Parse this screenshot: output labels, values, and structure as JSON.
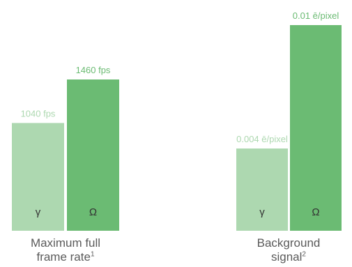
{
  "chart_data": [
    {
      "type": "bar",
      "title": "",
      "xlabel": "Maximum full frame rate",
      "xlabel_line1": "Maximum full",
      "xlabel_line2": "frame rate",
      "footnote": "1",
      "ylabel": "",
      "unit": "fps",
      "ylim": [
        0,
        1460
      ],
      "grid": false,
      "categories": [
        "γ",
        "Ω"
      ],
      "values": [
        1040,
        1460
      ],
      "value_labels": [
        "1040 fps",
        "1460 fps"
      ],
      "colors": [
        "#add8b0",
        "#6bbb73"
      ],
      "label_colors": [
        "#add8b0",
        "#6bbb73"
      ]
    },
    {
      "type": "bar",
      "title": "",
      "xlabel": "Background signal",
      "xlabel_line1": "Background",
      "xlabel_line2": "signal",
      "footnote": "2",
      "ylabel": "",
      "unit": "ē/pixel",
      "ylim": [
        0,
        0.01
      ],
      "grid": false,
      "categories": [
        "γ",
        "Ω"
      ],
      "values": [
        0.004,
        0.01
      ],
      "value_labels": [
        "0.004 ē/pixel",
        "0.01 ē/pixel"
      ],
      "colors": [
        "#add8b0",
        "#6bbb73"
      ],
      "label_colors": [
        "#add8b0",
        "#6bbb73"
      ]
    }
  ]
}
